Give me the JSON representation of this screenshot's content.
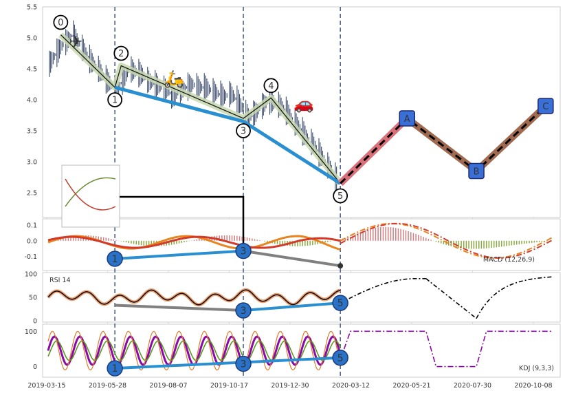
{
  "chart_data": {
    "type": "line",
    "x_ticks": [
      "2019-03-15",
      "2019-05-28",
      "2019-08-07",
      "2019-10-17",
      "2019-12-30",
      "2020-03-12",
      "2020-05-21",
      "2020-07-30",
      "2020-10-08"
    ],
    "price_panel": {
      "ylim": [
        2.1,
        5.5
      ],
      "y_ticks": [
        2.5,
        3.0,
        3.5,
        4.0,
        4.5,
        5.0,
        5.5
      ],
      "price_series": [
        [
          0,
          4.55
        ],
        [
          5,
          4.7
        ],
        [
          10,
          4.85
        ],
        [
          15,
          4.95
        ],
        [
          20,
          5.05
        ],
        [
          25,
          4.9
        ],
        [
          30,
          4.75
        ],
        [
          35,
          4.6
        ],
        [
          40,
          4.5
        ],
        [
          45,
          4.35
        ],
        [
          50,
          4.25
        ],
        [
          55,
          4.15
        ],
        [
          60,
          4.35
        ],
        [
          65,
          4.5
        ],
        [
          70,
          4.45
        ],
        [
          75,
          4.4
        ],
        [
          80,
          4.3
        ],
        [
          85,
          4.25
        ],
        [
          90,
          4.2
        ],
        [
          95,
          4.15
        ],
        [
          100,
          4.05
        ],
        [
          105,
          4.15
        ],
        [
          110,
          4.2
        ],
        [
          115,
          4.25
        ],
        [
          120,
          4.2
        ],
        [
          125,
          4.2
        ],
        [
          130,
          4.15
        ],
        [
          135,
          4.1
        ],
        [
          140,
          4.05
        ],
        [
          145,
          4.1
        ],
        [
          150,
          4.0
        ],
        [
          155,
          3.85
        ],
        [
          160,
          3.7
        ],
        [
          165,
          3.8
        ],
        [
          170,
          3.9
        ],
        [
          175,
          4.0
        ],
        [
          180,
          3.95
        ],
        [
          185,
          3.9
        ],
        [
          190,
          3.8
        ],
        [
          195,
          3.65
        ],
        [
          200,
          3.55
        ],
        [
          205,
          3.4
        ],
        [
          210,
          3.3
        ],
        [
          215,
          3.15
        ],
        [
          220,
          3.0
        ],
        [
          225,
          2.85
        ],
        [
          230,
          2.7
        ]
      ],
      "wave_points": [
        {
          "label": "0",
          "x": 10,
          "y": 5.05
        },
        {
          "label": "1",
          "x": 53,
          "y": 4.2
        },
        {
          "label": "2",
          "x": 58,
          "y": 4.55
        },
        {
          "label": "3",
          "x": 155,
          "y": 3.7
        },
        {
          "label": "4",
          "x": 177,
          "y": 4.03
        },
        {
          "label": "5",
          "x": 232,
          "y": 2.65
        }
      ],
      "trend_line": [
        [
          53,
          4.2
        ],
        [
          155,
          3.65
        ],
        [
          232,
          2.65
        ]
      ],
      "projection": [
        {
          "label": "A",
          "x": 285,
          "y": 3.7
        },
        {
          "label": "B",
          "x": 340,
          "y": 2.85
        },
        {
          "label": "C",
          "x": 395,
          "y": 3.9
        }
      ],
      "projection_start": [
        232,
        2.65
      ],
      "icons": [
        {
          "name": "airplane-icon",
          "glyph": "✈",
          "x": 22,
          "y": 4.85
        },
        {
          "name": "scooter-icon",
          "glyph": "🛵",
          "x": 100,
          "y": 4.25
        },
        {
          "name": "car-icon",
          "glyph": "🚗",
          "x": 203,
          "y": 3.85
        }
      ]
    },
    "macd_panel": {
      "label": "MACD (12,26,9)",
      "ylim": [
        -0.19,
        0.14
      ],
      "y_ticks": [
        0.1,
        0.0,
        -0.1
      ],
      "divergence_points": [
        {
          "label": "1",
          "x": 53,
          "y": -0.115
        },
        {
          "label": "3",
          "x": 155,
          "y": -0.065
        }
      ],
      "divergence_end": [
        232,
        -0.16
      ]
    },
    "rsi_panel": {
      "label": "RSI 14",
      "ylim": [
        0,
        100
      ],
      "y_ticks": [
        100,
        50,
        0
      ],
      "divergence_points": [
        {
          "label": "3",
          "x": 155,
          "y": 22
        },
        {
          "label": "5",
          "x": 232,
          "y": 38
        }
      ],
      "grey_start": [
        53,
        33
      ]
    },
    "kdj_panel": {
      "label": "KDJ (9,3,3)",
      "ylim": [
        -30,
        120
      ],
      "y_ticks": [
        100,
        0
      ],
      "divergence_points": [
        {
          "label": "1",
          "x": 53,
          "y": -5
        },
        {
          "label": "3",
          "x": 155,
          "y": 8
        },
        {
          "label": "5",
          "x": 232,
          "y": 25
        }
      ]
    },
    "wave_labels": [
      "0",
      "1",
      "2",
      "3",
      "4",
      "5"
    ],
    "projection_labels": [
      "A",
      "B",
      "C"
    ],
    "divergence_labels": [
      "1",
      "3",
      "5"
    ],
    "colors": {
      "price": "#3a4a6b",
      "trend": "#2a8fd0",
      "wave_fill": "#c8d8b0",
      "projection_band": "#d9707a",
      "projection_brown": "#a06a50",
      "macd_dif": "#e8841f",
      "macd_dea": "#d23a2a",
      "rsi": "#111111",
      "kdj_k": "#8b0aa5",
      "kdj_d": "#5a9a20",
      "kdj_j": "#e07a2a",
      "label_box": "#3b6fd8"
    }
  }
}
